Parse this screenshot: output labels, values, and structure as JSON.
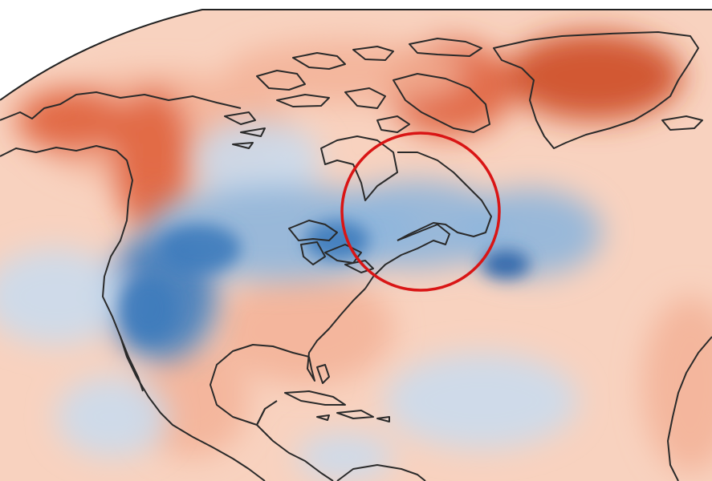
{
  "map": {
    "projection_style": "curved-edge",
    "colors": {
      "background": "#ffffff",
      "anomaly_base": "#f8d2bf",
      "warm_light": "#f3b197",
      "warm_strong": "#e0633d",
      "warm_darkest": "#cd4a22",
      "cold_light": "#c8dcf0",
      "cold_mid": "#8fb6dc",
      "cold_strong": "#3e7bbd",
      "cold_deep": "#2a62a8",
      "coastline": "#2a2a2a",
      "highlight_circle": "#d91515"
    },
    "regions": [
      "north-america",
      "greenland",
      "canadian-arctic-archipelago",
      "hudson-bay",
      "great-lakes",
      "newfoundland",
      "gulf-of-mexico",
      "caribbean",
      "south-america-north",
      "north-africa-west"
    ],
    "highlight": {
      "shape": "circle",
      "area": "northeast-north-america-nova-scotia"
    }
  }
}
